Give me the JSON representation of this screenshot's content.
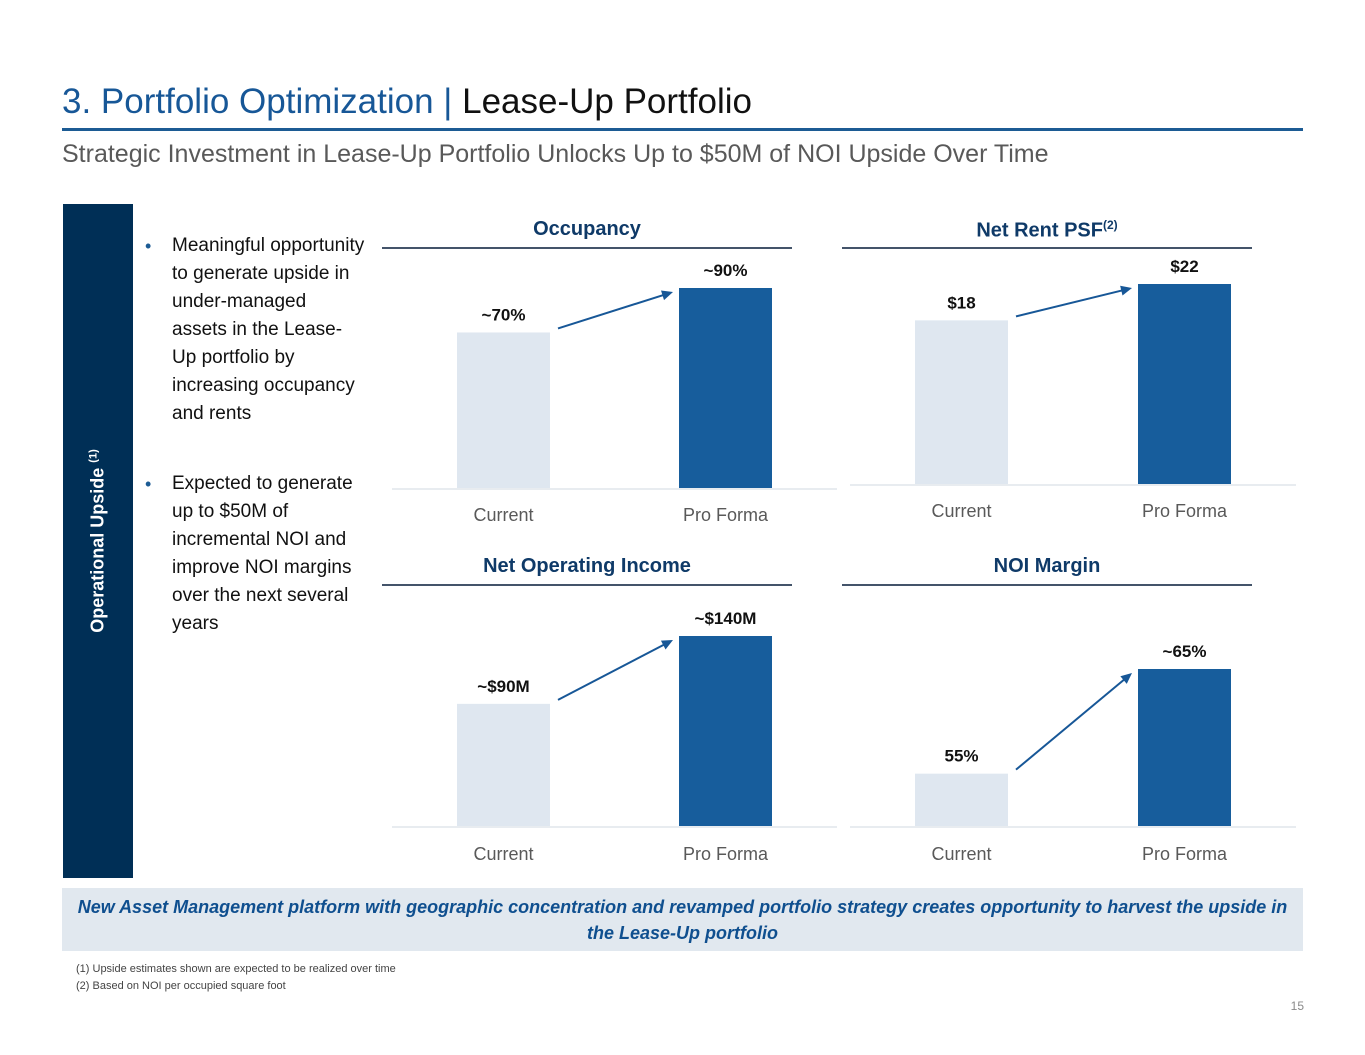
{
  "header": {
    "title_part1": "3. Portfolio Optimization",
    "title_separator": " | ",
    "title_part2": "Lease-Up Portfolio",
    "subtitle": "Strategic Investment in Lease-Up Portfolio Unlocks Up to $50M of NOI Upside Over Time"
  },
  "sidebar": {
    "label": "Operational Upside",
    "footnote_ref": "(1)"
  },
  "bullets": [
    "Meaningful opportunity to generate upside in under-managed assets in the Lease-Up portfolio by increasing occupancy and rents",
    "Expected to generate up to $50M of incremental NOI and improve NOI margins over the next several years"
  ],
  "colors": {
    "current_bar": "#dfe7f0",
    "pro_forma_bar": "#175d9c",
    "arrow": "#175797",
    "title_blue": "#175797",
    "sidebar_navy": "#002f56"
  },
  "chart_data": [
    {
      "type": "bar",
      "title": "Occupancy",
      "title_sup": "",
      "categories": [
        "Current",
        "Pro Forma"
      ],
      "values": [
        70,
        90
      ],
      "value_labels": [
        "~70%",
        "~90%"
      ],
      "unit": "%",
      "ylim": [
        0,
        100
      ],
      "arrow": true
    },
    {
      "type": "bar",
      "title": "Net Rent PSF",
      "title_sup": "(2)",
      "categories": [
        "Current",
        "Pro Forma"
      ],
      "values": [
        18,
        22
      ],
      "value_labels": [
        "$18",
        "$22"
      ],
      "unit": "$",
      "ylim": [
        0,
        25
      ],
      "arrow": true
    },
    {
      "type": "bar",
      "title": "Net Operating Income",
      "title_sup": "",
      "categories": [
        "Current",
        "Pro Forma"
      ],
      "values": [
        90,
        140
      ],
      "value_labels": [
        "~$90M",
        "~$140M"
      ],
      "unit": "$M",
      "ylim": [
        0,
        150
      ],
      "arrow": true
    },
    {
      "type": "bar",
      "title": "NOI Margin",
      "title_sup": "",
      "categories": [
        "Current",
        "Pro Forma"
      ],
      "values": [
        55,
        65
      ],
      "value_labels": [
        "55%",
        "~65%"
      ],
      "unit": "%",
      "ylim": [
        50,
        70
      ],
      "arrow": true
    }
  ],
  "callout": "New Asset Management platform with geographic concentration and revamped portfolio strategy creates opportunity to harvest the upside in the Lease-Up portfolio",
  "footnotes": [
    "(1)  Upside estimates shown are expected to be realized over time",
    "(2)  Based on NOI per occupied square foot"
  ],
  "page_number": "15"
}
